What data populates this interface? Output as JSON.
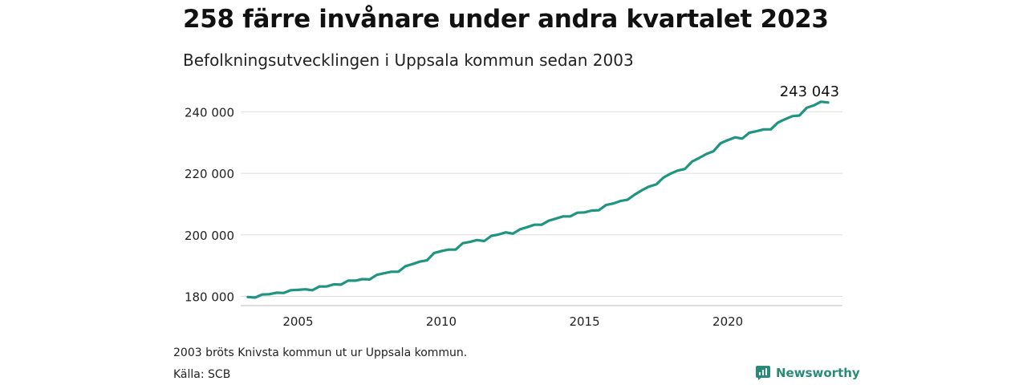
{
  "header": {
    "title": "258 färre invånare under andra kvartalet 2023",
    "subtitle": "Befolkningsutvecklingen i Uppsala kommun sedan 2003"
  },
  "footer": {
    "note": "2003 bröts Knivsta kommun ut ur Uppsala kommun.",
    "source": "Källa: SCB",
    "brand": "Newsworthy",
    "brand_icon": "chart-bubble-icon",
    "brand_color": "#2a8a7a"
  },
  "chart_data": {
    "type": "line",
    "title": "258 färre invånare under andra kvartalet 2023",
    "subtitle": "Befolkningsutvecklingen i Uppsala kommun sedan 2003",
    "xlabel": "",
    "ylabel": "",
    "xlim": [
      2003.0,
      2024.0
    ],
    "ylim": [
      177000,
      243500
    ],
    "x_ticks": [
      2005,
      2010,
      2015,
      2020
    ],
    "x_tick_labels": [
      "2005",
      "2010",
      "2015",
      "2020"
    ],
    "y_ticks": [
      180000,
      200000,
      220000,
      240000
    ],
    "y_tick_labels": [
      "180 000",
      "200 000",
      "220 000",
      "240 000"
    ],
    "grid": "horizontal",
    "line_color": "#1f9480",
    "grid_color": "#dddddd",
    "end_label": "243 043",
    "series": [
      {
        "x": [
          2003.25,
          2003.5,
          2003.75,
          2004.0,
          2004.25,
          2004.5,
          2004.75,
          2005.0,
          2005.25,
          2005.5,
          2005.75,
          2006.0,
          2006.25,
          2006.5,
          2006.75,
          2007.0,
          2007.25,
          2007.5,
          2007.75,
          2008.0,
          2008.25,
          2008.5,
          2008.75,
          2009.0,
          2009.25,
          2009.5,
          2009.75,
          2010.0,
          2010.25,
          2010.5,
          2010.75,
          2011.0,
          2011.25,
          2011.5,
          2011.75,
          2012.0,
          2012.25,
          2012.5,
          2012.75,
          2013.0,
          2013.25,
          2013.5,
          2013.75,
          2014.0,
          2014.25,
          2014.5,
          2014.75,
          2015.0,
          2015.25,
          2015.5,
          2015.75,
          2016.0,
          2016.25,
          2016.5,
          2016.75,
          2017.0,
          2017.25,
          2017.5,
          2017.75,
          2018.0,
          2018.25,
          2018.5,
          2018.75,
          2019.0,
          2019.25,
          2019.5,
          2019.75,
          2020.0,
          2020.25,
          2020.5,
          2020.75,
          2021.0,
          2021.25,
          2021.5,
          2021.75,
          2022.0,
          2022.25,
          2022.5,
          2022.75,
          2023.0,
          2023.25,
          2023.5
        ],
        "values": [
          179800,
          179600,
          180600,
          180700,
          181200,
          181100,
          182000,
          182100,
          182300,
          182000,
          183200,
          183200,
          183900,
          183800,
          185100,
          185100,
          185600,
          185500,
          187000,
          187500,
          188000,
          188000,
          189800,
          190500,
          191300,
          191700,
          194100,
          194700,
          195200,
          195200,
          197300,
          197700,
          198300,
          198000,
          199700,
          200100,
          200800,
          200400,
          201800,
          202500,
          203300,
          203300,
          204600,
          205300,
          206000,
          206000,
          207200,
          207300,
          207900,
          208000,
          209700,
          210200,
          211000,
          211400,
          213100,
          214500,
          215700,
          216400,
          218600,
          219900,
          220900,
          221400,
          223800,
          225000,
          226300,
          227200,
          229800,
          230800,
          231700,
          231300,
          233200,
          233700,
          234300,
          234300,
          236500,
          237600,
          238600,
          238800,
          241300,
          242100,
          243300,
          243043
        ]
      }
    ]
  }
}
